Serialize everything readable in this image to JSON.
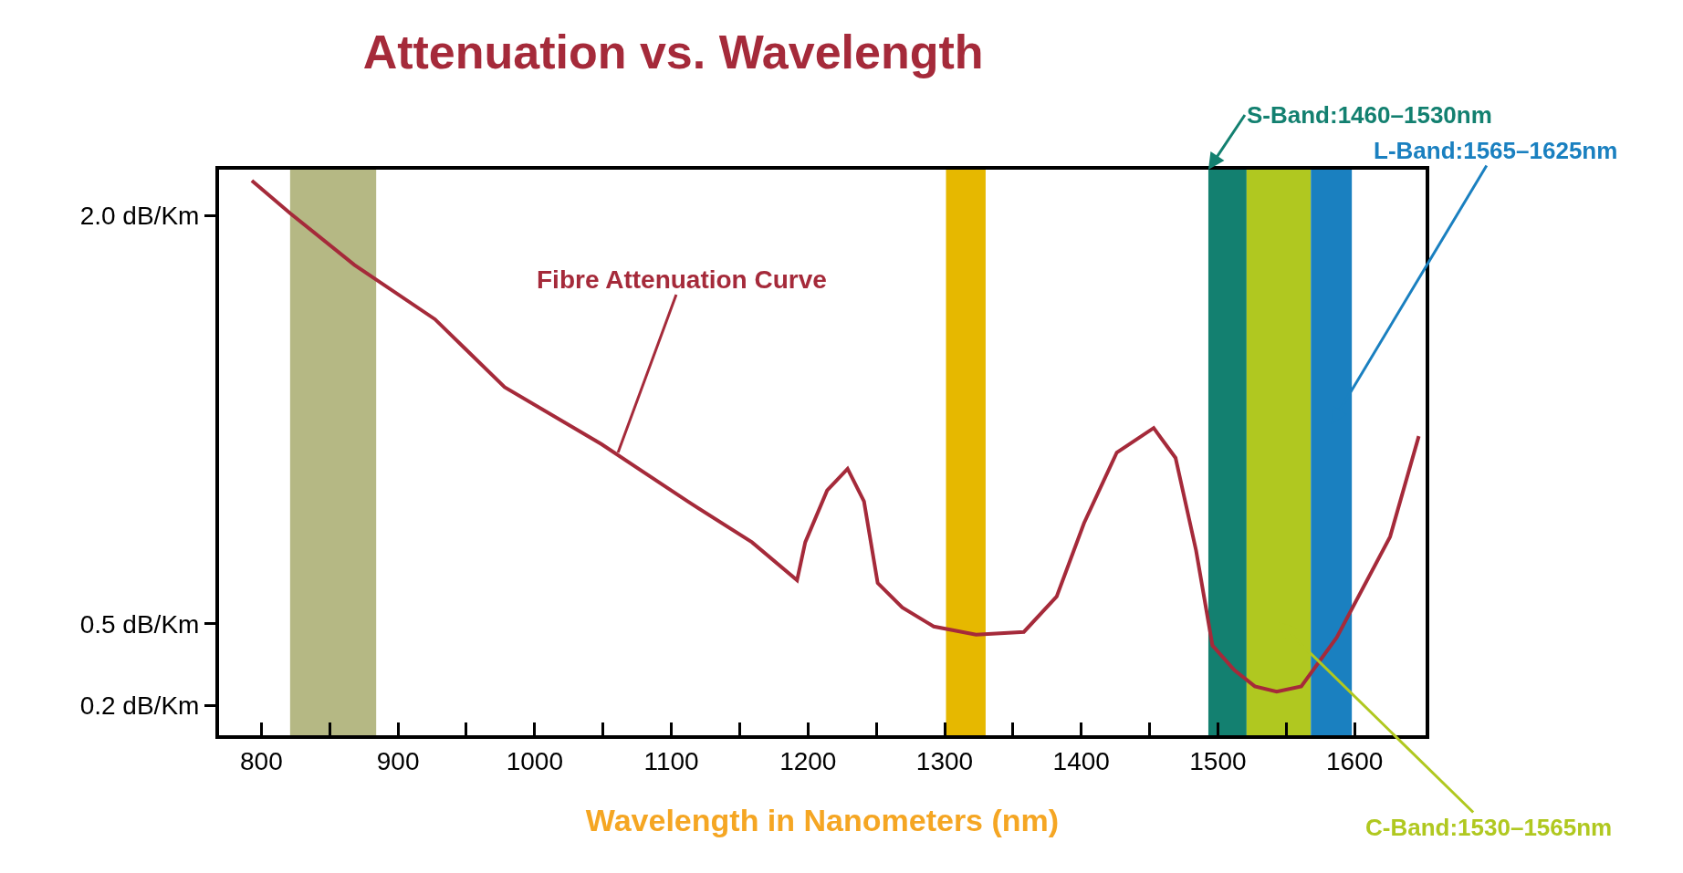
{
  "chart_data": {
    "type": "line",
    "title": "Attenuation vs. Wavelength",
    "xlabel": "Wavelength in Nanometers (nm)",
    "xlim": [
      769,
      1652
    ],
    "xticks": [
      800,
      {
        "value": 850,
        "label": null
      },
      900,
      {
        "value": 950,
        "label": null
      },
      1000,
      {
        "value": 1050,
        "label": null
      },
      1100,
      {
        "value": 1150,
        "label": null
      },
      1200,
      {
        "value": 1250,
        "label": null
      },
      1300,
      {
        "value": 1350,
        "label": null
      },
      1400,
      {
        "value": 1450,
        "label": null
      },
      1500,
      {
        "value": 1550,
        "label": null
      },
      1600
    ],
    "ylim": [
      0.09,
      2.17
    ],
    "yticks": [
      {
        "value": 0.2,
        "label": "0.2 dB/Km"
      },
      {
        "value": 0.5,
        "label": "0.5 dB/Km"
      },
      {
        "value": 2.0,
        "label": "2.0 dB/Km"
      }
    ],
    "grid": false,
    "marker": "none",
    "line_style": "solid",
    "series": [
      {
        "color": "#a52a3a",
        "x": [
          793,
          821,
          868,
          927,
          978,
          1049,
          1112,
          1159,
          1192,
          1198,
          1214,
          1229,
          1241,
          1251,
          1269,
          1292,
          1323,
          1358,
          1382,
          1402,
          1426,
          1453,
          1469,
          1484,
          1496,
          1512,
          1527,
          1543,
          1561,
          1587,
          1626,
          1647
        ],
        "values": [
          2.13,
          2.01,
          1.82,
          1.62,
          1.37,
          1.16,
          0.95,
          0.8,
          0.66,
          0.8,
          0.99,
          1.07,
          0.95,
          0.65,
          0.56,
          0.49,
          0.46,
          0.47,
          0.6,
          0.87,
          1.13,
          1.22,
          1.11,
          0.77,
          0.42,
          0.33,
          0.27,
          0.25,
          0.27,
          0.45,
          0.82,
          1.19
        ]
      }
    ],
    "bands": [
      {
        "axis": "x",
        "from": 821,
        "to": 884,
        "color": "#b5b884"
      },
      {
        "axis": "x",
        "from": 1301,
        "to": 1330,
        "color": "#e6b800"
      },
      {
        "axis": "x",
        "from": 1493,
        "to": 1521,
        "color": "#138070",
        "label": "S-Band:1460–1530nm"
      },
      {
        "axis": "x",
        "from": 1521,
        "to": 1568,
        "color": "#b0c820",
        "label": "C-Band:1530–1565nm"
      },
      {
        "axis": "x",
        "from": 1568,
        "to": 1598,
        "color": "#1a80c0",
        "label": "L-Band:1565–1625nm"
      }
    ],
    "annotations": [
      {
        "text": "Fibre Attenuation Curve",
        "x": 1061,
        "y": 1.13
      }
    ]
  }
}
